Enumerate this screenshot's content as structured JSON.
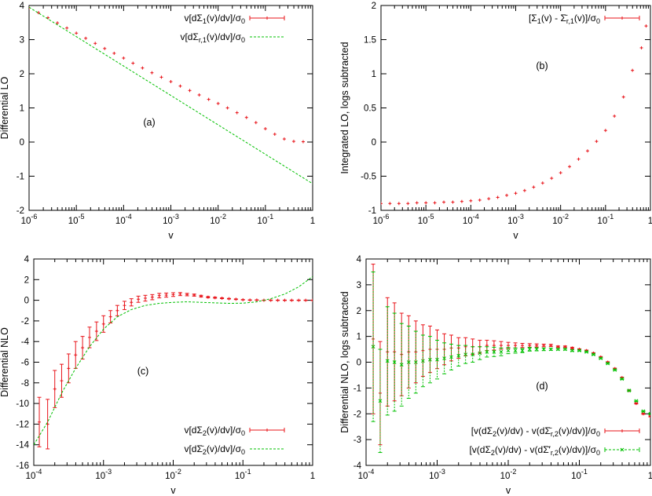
{
  "chart_data": [
    {
      "id": "a",
      "type": "line",
      "annotation": "(a)",
      "xlabel": "v",
      "ylabel": "Differential LO",
      "xscale": "log",
      "xlim": [
        1e-06,
        1
      ],
      "ylim": [
        -2,
        4
      ],
      "xticks": [
        1e-06,
        1e-05,
        0.0001,
        0.001,
        0.01,
        0.1,
        1
      ],
      "xticklabels": [
        {
          "b": "10",
          "e": "-6"
        },
        {
          "b": "10",
          "e": "-5"
        },
        {
          "b": "10",
          "e": "-4"
        },
        {
          "b": "10",
          "e": "-3"
        },
        {
          "b": "10",
          "e": "-2"
        },
        {
          "b": "10",
          "e": "-1"
        },
        {
          "b": "1",
          "e": ""
        }
      ],
      "yticks": [
        -2,
        -1,
        0,
        1,
        2,
        3,
        4
      ],
      "yticklabels": [
        "-2",
        "-1",
        "0",
        "1",
        "2",
        "3",
        "4"
      ],
      "legend_position": "top-right",
      "series": [
        {
          "name": "v[dΣ₁(v)/dv]/σ₀",
          "style": "points-err",
          "color": "#e8141a",
          "x": [
            1e-06,
            1.58e-06,
            2.51e-06,
            3.98e-06,
            6.31e-06,
            1e-05,
            1.58e-05,
            2.51e-05,
            3.98e-05,
            6.31e-05,
            0.0001,
            0.000158,
            0.000251,
            0.000398,
            0.000631,
            0.001,
            0.00158,
            0.00251,
            0.00398,
            0.00631,
            0.01,
            0.0158,
            0.0251,
            0.0398,
            0.0631,
            0.1,
            0.158,
            0.251,
            0.398,
            0.631
          ],
          "y": [
            3.93,
            3.79,
            3.64,
            3.49,
            3.34,
            3.19,
            3.04,
            2.89,
            2.74,
            2.6,
            2.46,
            2.31,
            2.17,
            2.03,
            1.9,
            1.77,
            1.64,
            1.51,
            1.38,
            1.25,
            1.13,
            1.0,
            0.86,
            0.72,
            0.57,
            0.39,
            0.23,
            0.09,
            0.02,
            0.01
          ],
          "err": []
        },
        {
          "name": "v[dΣr,1(v)/dv]/σ₀",
          "style": "line-dash",
          "color": "#00c000",
          "x": [
            1e-06,
            1
          ],
          "y": [
            3.95,
            -1.22
          ]
        }
      ]
    },
    {
      "id": "b",
      "type": "scatter",
      "annotation": "(b)",
      "xlabel": "v",
      "ylabel": "Integrated LO, logs subtracted",
      "xscale": "log",
      "xlim": [
        1e-06,
        1
      ],
      "ylim": [
        -1,
        2
      ],
      "xticks": [
        1e-06,
        1e-05,
        0.0001,
        0.001,
        0.01,
        0.1,
        1
      ],
      "xticklabels": [
        {
          "b": "10",
          "e": "-6"
        },
        {
          "b": "10",
          "e": "-5"
        },
        {
          "b": "10",
          "e": "-4"
        },
        {
          "b": "10",
          "e": "-3"
        },
        {
          "b": "10",
          "e": "-2"
        },
        {
          "b": "10",
          "e": "-1"
        },
        {
          "b": "1",
          "e": ""
        }
      ],
      "yticks": [
        -1,
        -0.5,
        0,
        0.5,
        1,
        1.5,
        2
      ],
      "yticklabels": [
        "-1",
        "-0.5",
        "0",
        "0.5",
        "1",
        "1.5",
        "2"
      ],
      "legend_position": "top-right",
      "series": [
        {
          "name": "[Σ₁(v) - Σ̄r,1(v)]/σ₀",
          "style": "points-err",
          "color": "#e8141a",
          "x": [
            1e-06,
            1.58e-06,
            2.51e-06,
            3.98e-06,
            6.31e-06,
            1e-05,
            1.58e-05,
            2.51e-05,
            3.98e-05,
            6.31e-05,
            0.0001,
            0.000158,
            0.000251,
            0.000398,
            0.000631,
            0.001,
            0.00158,
            0.00251,
            0.00398,
            0.00631,
            0.01,
            0.0158,
            0.0251,
            0.0398,
            0.0631,
            0.1,
            0.158,
            0.251,
            0.398,
            0.631,
            0.8
          ],
          "y": [
            -0.9,
            -0.9,
            -0.9,
            -0.9,
            -0.89,
            -0.89,
            -0.89,
            -0.88,
            -0.88,
            -0.87,
            -0.86,
            -0.85,
            -0.83,
            -0.81,
            -0.78,
            -0.75,
            -0.71,
            -0.66,
            -0.6,
            -0.53,
            -0.45,
            -0.36,
            -0.25,
            -0.13,
            0.01,
            0.17,
            0.38,
            0.66,
            1.05,
            1.38,
            1.7
          ],
          "err": []
        }
      ]
    },
    {
      "id": "c",
      "type": "line",
      "annotation": "(c)",
      "xlabel": "v",
      "ylabel": "Differential NLO",
      "xscale": "log",
      "xlim": [
        0.0001,
        1
      ],
      "ylim": [
        -16,
        4
      ],
      "xticks": [
        0.0001,
        0.001,
        0.01,
        0.1,
        1
      ],
      "xticklabels": [
        {
          "b": "10",
          "e": "-4"
        },
        {
          "b": "10",
          "e": "-3"
        },
        {
          "b": "10",
          "e": "-2"
        },
        {
          "b": "10",
          "e": "-1"
        },
        {
          "b": "1",
          "e": ""
        }
      ],
      "yticks": [
        -16,
        -14,
        -12,
        -10,
        -8,
        -6,
        -4,
        -2,
        0,
        2,
        4
      ],
      "yticklabels": [
        "-16",
        "-14",
        "-12",
        "-10",
        "-8",
        "-6",
        "-4",
        "-2",
        "0",
        "2",
        "4"
      ],
      "legend_position": "bottom-right",
      "series": [
        {
          "name": "v[dΣ₂(v)/dv]/σ₀",
          "style": "points-err",
          "color": "#e8141a",
          "x": [
            0.00012,
            0.000158,
            0.0002,
            0.000251,
            0.000316,
            0.000398,
            0.000501,
            0.000631,
            0.000794,
            0.001,
            0.00126,
            0.00158,
            0.002,
            0.00251,
            0.00316,
            0.00398,
            0.00501,
            0.00631,
            0.00794,
            0.01,
            0.0126,
            0.0158,
            0.02,
            0.0251,
            0.0316,
            0.0398,
            0.0501,
            0.0631,
            0.0794,
            0.1,
            0.126,
            0.158,
            0.2,
            0.251,
            0.316,
            0.398,
            0.501,
            0.631,
            0.794,
            1.0
          ],
          "y": [
            -11.8,
            -12.0,
            -8.6,
            -7.8,
            -6.6,
            -5.3,
            -4.6,
            -3.6,
            -3.0,
            -2.3,
            -1.6,
            -1.0,
            -0.5,
            -0.2,
            0.1,
            0.2,
            0.3,
            0.45,
            0.5,
            0.55,
            0.6,
            0.55,
            0.5,
            0.4,
            0.3,
            0.25,
            0.2,
            0.15,
            0.1,
            0.05,
            0.02,
            0.02,
            0.0,
            0.0,
            0.0,
            0.0,
            0.0,
            0.0,
            0.0,
            0.0
          ],
          "err": [
            2.4,
            2.4,
            1.8,
            1.6,
            1.4,
            1.3,
            1.1,
            1.0,
            0.9,
            0.8,
            0.6,
            0.5,
            0.4,
            0.35,
            0.3,
            0.28,
            0.25,
            0.22,
            0.2,
            0.18,
            0.15,
            0.12,
            0.1,
            0.08,
            0.06,
            0.05,
            0.04,
            0.03,
            0.03,
            0.02,
            0.02,
            0.02,
            0.02,
            0.02,
            0.02,
            0.02,
            0.02,
            0.02,
            0.02,
            0.02
          ]
        },
        {
          "name": "v[dΣ̄₂(v)/dv]/σ₀",
          "style": "line-dash",
          "color": "#00c000",
          "x": [
            0.0001,
            0.000158,
            0.000251,
            0.000398,
            0.000631,
            0.001,
            0.00158,
            0.00251,
            0.00398,
            0.00631,
            0.01,
            0.0158,
            0.0251,
            0.0398,
            0.0631,
            0.1,
            0.158,
            0.251,
            0.398,
            0.631,
            1.0
          ],
          "y": [
            -14.0,
            -11.8,
            -9.0,
            -6.6,
            -4.5,
            -2.8,
            -1.6,
            -0.9,
            -0.5,
            -0.3,
            -0.2,
            -0.15,
            -0.2,
            -0.25,
            -0.3,
            -0.28,
            -0.15,
            0.15,
            0.6,
            1.3,
            2.3
          ]
        }
      ]
    },
    {
      "id": "d",
      "type": "scatter",
      "annotation": "(d)",
      "xlabel": "v",
      "ylabel": "Differential NLO, logs subtracted",
      "xscale": "log",
      "xlim": [
        0.0001,
        1
      ],
      "ylim": [
        -4,
        4
      ],
      "xticks": [
        0.0001,
        0.001,
        0.01,
        0.1,
        1
      ],
      "xticklabels": [
        {
          "b": "10",
          "e": "-4"
        },
        {
          "b": "10",
          "e": "-3"
        },
        {
          "b": "10",
          "e": "-2"
        },
        {
          "b": "10",
          "e": "-1"
        },
        {
          "b": "1",
          "e": ""
        }
      ],
      "yticks": [
        -4,
        -3,
        -2,
        -1,
        0,
        1,
        2,
        3,
        4
      ],
      "yticklabels": [
        "-4",
        "-3",
        "-2",
        "-1",
        "0",
        "1",
        "2",
        "3",
        "4"
      ],
      "legend_position": "bottom-right",
      "series": [
        {
          "name": "[v(dΣ₂(v)/dv) - v(dΣ̄r,2(v)/dv)]/σ₀",
          "style": "points-err",
          "color": "#e8141a",
          "x": [
            0.000126,
            0.000158,
            0.0002,
            0.000251,
            0.000316,
            0.000398,
            0.000501,
            0.000631,
            0.000794,
            0.001,
            0.00126,
            0.00158,
            0.002,
            0.00251,
            0.00316,
            0.00398,
            0.00501,
            0.00631,
            0.00794,
            0.01,
            0.0126,
            0.0158,
            0.02,
            0.0251,
            0.0316,
            0.0398,
            0.0501,
            0.0631,
            0.0794,
            0.1,
            0.126,
            0.158,
            0.2,
            0.251,
            0.316,
            0.398,
            0.501,
            0.631,
            0.794,
            1.0
          ],
          "y": [
            0.9,
            -1.2,
            0.4,
            0.4,
            0.3,
            0.4,
            0.4,
            0.45,
            0.5,
            0.5,
            0.5,
            0.55,
            0.55,
            0.6,
            0.6,
            0.6,
            0.65,
            0.65,
            0.65,
            0.65,
            0.65,
            0.65,
            0.65,
            0.65,
            0.65,
            0.65,
            0.6,
            0.6,
            0.55,
            0.5,
            0.45,
            0.35,
            0.2,
            0.0,
            -0.25,
            -0.6,
            -1.1,
            -1.6,
            -2.0,
            -2.1
          ],
          "err": [
            2.9,
            2.0,
            2.1,
            1.9,
            1.6,
            1.4,
            1.2,
            1.0,
            0.9,
            0.75,
            0.6,
            0.5,
            0.4,
            0.35,
            0.3,
            0.25,
            0.2,
            0.18,
            0.15,
            0.12,
            0.1,
            0.08,
            0.07,
            0.06,
            0.05,
            0.04,
            0.03,
            0.03,
            0.03,
            0.02,
            0.02,
            0.02,
            0.02,
            0.02,
            0.02,
            0.02,
            0.02,
            0.02,
            0.02,
            0.02
          ]
        },
        {
          "name": "[v(dΣ₂(v)/dv) - v(dΣ̄′r,2(v)/dv)]/σ₀",
          "style": "points-err-x",
          "color": "#00c000",
          "x": [
            0.000126,
            0.000158,
            0.0002,
            0.000251,
            0.000316,
            0.000398,
            0.000501,
            0.000631,
            0.000794,
            0.001,
            0.00126,
            0.00158,
            0.002,
            0.00251,
            0.00316,
            0.00398,
            0.00501,
            0.00631,
            0.00794,
            0.01,
            0.0126,
            0.0158,
            0.02,
            0.0251,
            0.0316,
            0.0398,
            0.0501,
            0.0631,
            0.0794,
            0.1,
            0.126,
            0.158,
            0.2,
            0.251,
            0.316,
            0.398,
            0.501,
            0.631,
            0.794,
            1.0
          ],
          "y": [
            0.6,
            -1.5,
            0.05,
            0.0,
            -0.1,
            0.0,
            0.0,
            0.05,
            0.1,
            0.1,
            0.15,
            0.2,
            0.25,
            0.3,
            0.3,
            0.35,
            0.4,
            0.4,
            0.4,
            0.45,
            0.45,
            0.45,
            0.5,
            0.5,
            0.5,
            0.5,
            0.5,
            0.5,
            0.45,
            0.45,
            0.4,
            0.3,
            0.15,
            -0.05,
            -0.3,
            -0.65,
            -1.1,
            -1.5,
            -1.9,
            -2.0
          ],
          "err": [
            2.9,
            2.0,
            2.1,
            1.9,
            1.6,
            1.4,
            1.2,
            1.0,
            0.9,
            0.75,
            0.6,
            0.5,
            0.4,
            0.35,
            0.3,
            0.25,
            0.2,
            0.18,
            0.15,
            0.12,
            0.1,
            0.08,
            0.07,
            0.06,
            0.05,
            0.04,
            0.03,
            0.03,
            0.03,
            0.02,
            0.02,
            0.02,
            0.02,
            0.02,
            0.02,
            0.02,
            0.02,
            0.02,
            0.02,
            0.02
          ]
        }
      ]
    }
  ]
}
